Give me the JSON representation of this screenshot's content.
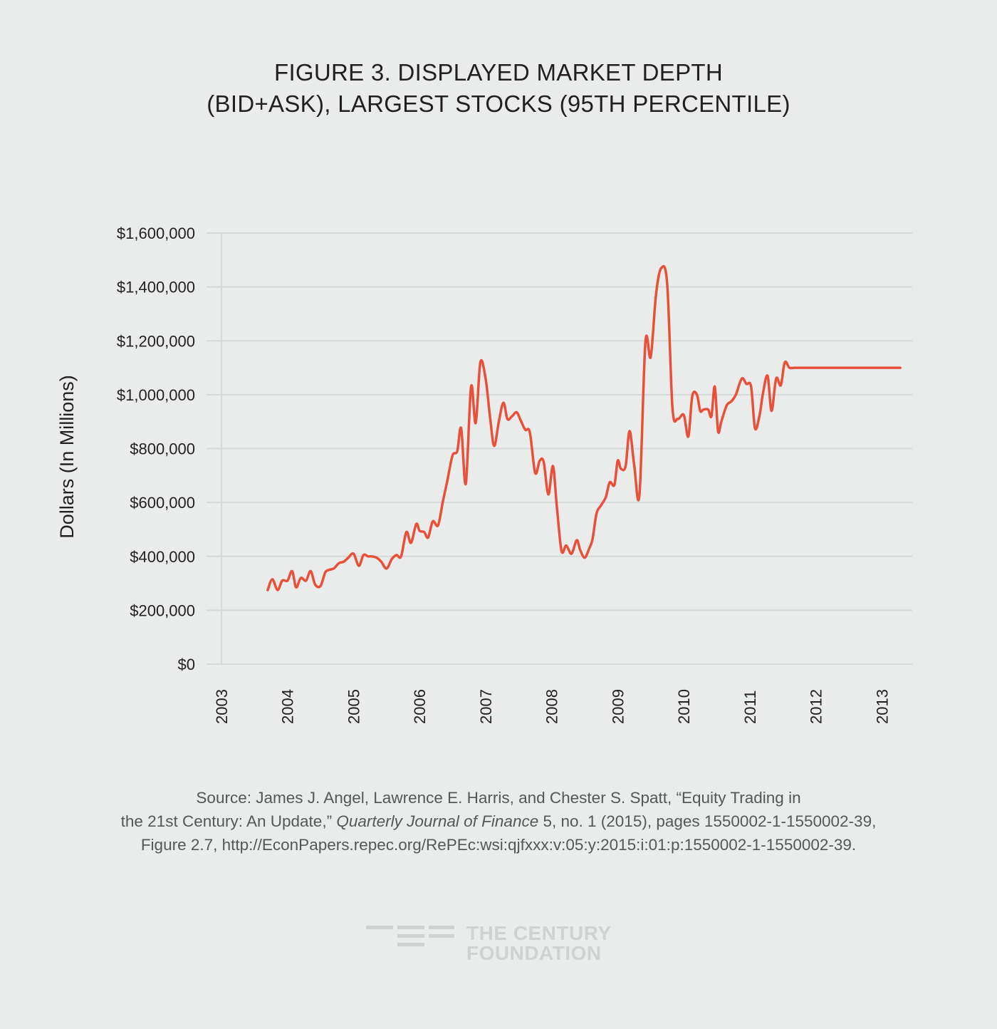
{
  "title": {
    "line1": "FIGURE 3. DISPLAYED MARKET DEPTH",
    "line2": "(BID+ASK), LARGEST STOCKS (95TH PERCENTILE)"
  },
  "colors": {
    "background": "#e9eceb",
    "line": "#e8503a",
    "grid": "#d5d8d9",
    "text": "#231f20",
    "source_text": "#555759",
    "logo": "#cfd2d3"
  },
  "chart_data": {
    "type": "line",
    "title": "FIGURE 3. DISPLAYED MARKET DEPTH (BID+ASK), LARGEST STOCKS (95TH PERCENTILE)",
    "xlabel": "",
    "ylabel": "Dollars (In Millions)",
    "grid": true,
    "legend": "none",
    "xlim": [
      2003,
      2013.45
    ],
    "ylim": [
      0,
      1600000
    ],
    "x_ticks": [
      2003,
      2004,
      2005,
      2006,
      2007,
      2008,
      2009,
      2010,
      2011,
      2012,
      2013
    ],
    "x_tick_labels": [
      "2003",
      "2004",
      "2005",
      "2006",
      "2007",
      "2008",
      "2009",
      "2010",
      "2011",
      "2012",
      "2013"
    ],
    "y_ticks": [
      0,
      200000,
      400000,
      600000,
      800000,
      1000000,
      1200000,
      1400000,
      1600000
    ],
    "y_tick_labels": [
      "$0",
      "$200,000",
      "$400,000",
      "$600,000",
      "$800,000",
      "$1,000,000",
      "$1,200,000",
      "$1,400,000",
      "$1,600,000"
    ],
    "series": [
      {
        "name": "Displayed market depth",
        "x": [
          2003.7,
          2003.77,
          2003.85,
          2003.92,
          2004.0,
          2004.07,
          2004.13,
          2004.2,
          2004.28,
          2004.35,
          2004.42,
          2004.5,
          2004.57,
          2004.63,
          2004.7,
          2004.78,
          2004.85,
          2004.92,
          2005.0,
          2005.08,
          2005.15,
          2005.22,
          2005.28,
          2005.35,
          2005.42,
          2005.5,
          2005.58,
          2005.65,
          2005.72,
          2005.8,
          2005.87,
          2005.95,
          2006.0,
          2006.07,
          2006.13,
          2006.2,
          2006.28,
          2006.35,
          2006.42,
          2006.5,
          2006.57,
          2006.63,
          2006.7,
          2006.78,
          2006.85,
          2006.92,
          2007.0,
          2007.07,
          2007.13,
          2007.2,
          2007.27,
          2007.33,
          2007.4,
          2007.47,
          2007.53,
          2007.6,
          2007.67,
          2007.75,
          2007.82,
          2007.88,
          2007.95,
          2008.02,
          2008.08,
          2008.15,
          2008.22,
          2008.3,
          2008.38,
          2008.43,
          2008.5,
          2008.57,
          2008.62,
          2008.68,
          2008.75,
          2008.82,
          2008.88,
          2008.95,
          2009.0,
          2009.05,
          2009.12,
          2009.18,
          2009.25,
          2009.33,
          2009.42,
          2009.5,
          2009.58,
          2009.66,
          2009.75,
          2009.83,
          2009.91,
          2010.0,
          2010.07,
          2010.13,
          2010.2,
          2010.25,
          2010.3,
          2010.37,
          2010.42,
          2010.47,
          2010.52,
          2010.57,
          2010.65,
          2010.72,
          2010.79,
          2010.88,
          2010.95,
          2011.02,
          2011.08,
          2011.15,
          2011.2,
          2011.27,
          2011.33,
          2011.4,
          2011.47,
          2011.53,
          2011.6,
          2011.67,
          2011.73,
          2011.8,
          2011.87,
          2011.93,
          2012.0,
          2012.07,
          2012.15,
          2012.22,
          2012.28,
          2012.35,
          2012.42,
          2012.48,
          2012.55,
          2012.62,
          2012.7,
          2012.78,
          2012.83,
          2012.9,
          2012.97,
          2013.03,
          2013.08,
          2013.15,
          2013.22,
          2013.28
        ],
        "values": [
          275000,
          315000,
          275000,
          310000,
          310000,
          345000,
          285000,
          320000,
          310000,
          345000,
          295000,
          290000,
          340000,
          350000,
          355000,
          375000,
          380000,
          395000,
          410000,
          365000,
          405000,
          400000,
          400000,
          395000,
          380000,
          355000,
          390000,
          405000,
          400000,
          490000,
          450000,
          520000,
          495000,
          490000,
          470000,
          530000,
          515000,
          600000,
          680000,
          775000,
          790000,
          875000,
          670000,
          1030000,
          895000,
          1120000,
          1060000,
          910000,
          810000,
          900000,
          970000,
          910000,
          920000,
          935000,
          905000,
          870000,
          860000,
          710000,
          755000,
          750000,
          630000,
          735000,
          580000,
          420000,
          440000,
          410000,
          460000,
          425000,
          395000,
          430000,
          465000,
          560000,
          590000,
          620000,
          675000,
          665000,
          755000,
          725000,
          735000,
          865000,
          740000,
          630000,
          1195000,
          1140000,
          1370000,
          1470000,
          1410000,
          950000,
          910000,
          925000,
          845000,
          995000,
          1000000,
          940000,
          945000,
          945000,
          920000,
          1030000,
          865000,
          900000,
          960000,
          975000,
          1000000,
          1060000,
          1040000,
          1030000,
          875000,
          925000,
          1005000,
          1070000,
          940000,
          1060000,
          1035000,
          1120000,
          1100000,
          1100000,
          1100000,
          1100000,
          1100000,
          1100000,
          1100000,
          1100000,
          1100000,
          1100000,
          1100000,
          1100000,
          1100000,
          1100000,
          1100000,
          1100000,
          1100000,
          1100000,
          1100000,
          1100000,
          1100000,
          1100000,
          1100000,
          1100000,
          1100000,
          1100000
        ]
      }
    ]
  },
  "source": {
    "line1": "Source: James J. Angel, Lawrence E. Harris, and Chester S. Spatt, “Equity Trading in",
    "line2_a": "the 21st Century: An Update,” ",
    "line2_journal": "Quarterly Journal of Finance",
    "line2_b": " 5, no. 1 (2015), pages 1550002-1-1550002-39,",
    "line3": "Figure 2.7, http://EconPapers.repec.org/RePEc:wsi:qjfxxx:v:05:y:2015:i:01:p:1550002-1-1550002-39."
  },
  "logo": {
    "line1": "THE CENTURY",
    "line2": "FOUNDATION"
  }
}
